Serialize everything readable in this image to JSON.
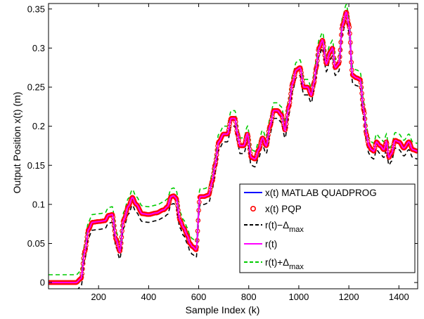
{
  "chart_data": {
    "type": "line",
    "xlabel": "Sample Index (k)",
    "ylabel": "Output Position x(t) (m)",
    "xlim": [
      0,
      1475
    ],
    "ylim": [
      -0.008,
      0.357
    ],
    "xticks": [
      200,
      400,
      600,
      800,
      1000,
      1200,
      1400
    ],
    "yticks": [
      0,
      0.05,
      0.1,
      0.15,
      0.2,
      0.25,
      0.3,
      0.35
    ],
    "ytick_labels": [
      "0",
      "0.05",
      "0.1",
      "0.15",
      "0.2",
      "0.25",
      "0.3",
      "0.35"
    ],
    "legend_position": "lower-right",
    "delta_max": 0.01,
    "reference": {
      "x": [
        0,
        110,
        130,
        145,
        160,
        175,
        200,
        225,
        240,
        255,
        270,
        285,
        300,
        320,
        335,
        350,
        375,
        400,
        430,
        460,
        475,
        490,
        500,
        510,
        525,
        540,
        555,
        565,
        575,
        590,
        605,
        620,
        640,
        655,
        665,
        680,
        700,
        715,
        730,
        745,
        755,
        765,
        780,
        795,
        810,
        825,
        840,
        855,
        870,
        885,
        900,
        915,
        930,
        945,
        960,
        975,
        990,
        1005,
        1020,
        1035,
        1050,
        1060,
        1070,
        1080,
        1095,
        1110,
        1125,
        1135,
        1145,
        1160,
        1175,
        1190,
        1200,
        1215,
        1230,
        1245,
        1260,
        1270,
        1280,
        1290,
        1300,
        1310,
        1325,
        1340,
        1350,
        1360,
        1370,
        1385,
        1400,
        1420,
        1440,
        1455,
        1475
      ],
      "y": [
        0,
        0,
        0.005,
        0.04,
        0.068,
        0.077,
        0.078,
        0.079,
        0.086,
        0.087,
        0.055,
        0.04,
        0.08,
        0.098,
        0.109,
        0.1,
        0.088,
        0.087,
        0.089,
        0.093,
        0.097,
        0.11,
        0.111,
        0.108,
        0.08,
        0.07,
        0.06,
        0.05,
        0.046,
        0.042,
        0.11,
        0.11,
        0.112,
        0.13,
        0.15,
        0.18,
        0.19,
        0.19,
        0.21,
        0.21,
        0.19,
        0.175,
        0.175,
        0.19,
        0.16,
        0.158,
        0.17,
        0.185,
        0.175,
        0.2,
        0.22,
        0.22,
        0.215,
        0.195,
        0.225,
        0.255,
        0.272,
        0.275,
        0.25,
        0.25,
        0.24,
        0.255,
        0.275,
        0.3,
        0.31,
        0.28,
        0.295,
        0.3,
        0.275,
        0.28,
        0.33,
        0.346,
        0.33,
        0.265,
        0.262,
        0.26,
        0.22,
        0.19,
        0.175,
        0.17,
        0.168,
        0.18,
        0.175,
        0.17,
        0.18,
        0.16,
        0.165,
        0.182,
        0.18,
        0.172,
        0.18,
        0.17,
        0.168
      ]
    },
    "series": [
      {
        "name": "x(t) MATLAB QUADPROG",
        "color": "#0000ff",
        "style": "solid"
      },
      {
        "name": "x(t) PQP",
        "color": "#ff0000",
        "style": "circle-markers"
      },
      {
        "name": "r(t)−Δ",
        "subscript": "max",
        "color": "#000000",
        "style": "dashed"
      },
      {
        "name": "r(t)",
        "color": "#ff00ff",
        "style": "solid"
      },
      {
        "name": "r(t)+Δ",
        "subscript": "max",
        "color": "#00cc00",
        "style": "dashed"
      }
    ]
  }
}
